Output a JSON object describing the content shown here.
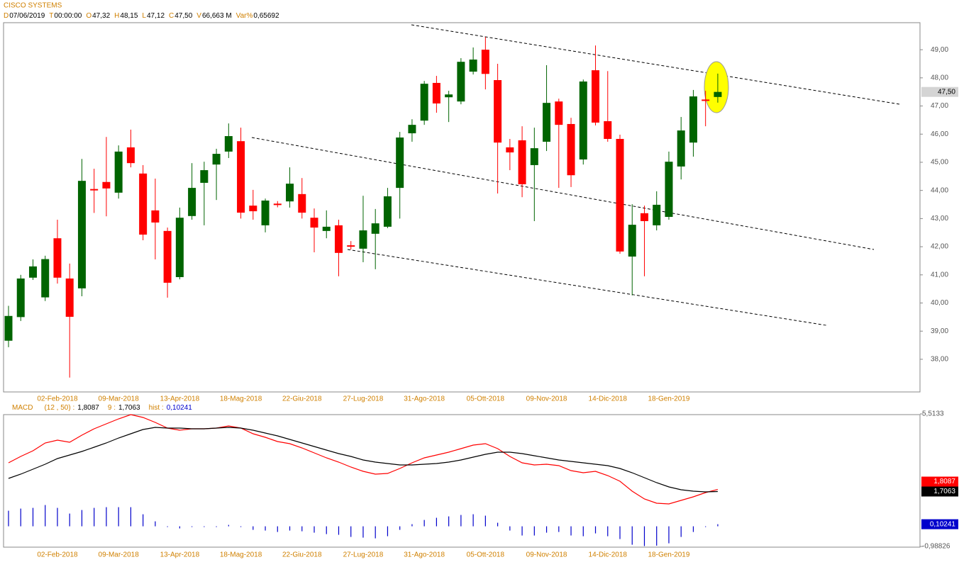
{
  "chart_data": [
    {
      "type": "candlestick",
      "title": "CISCO SYSTEMS",
      "header": [
        {
          "key": "D",
          "value": "07/06/2019"
        },
        {
          "key": "T",
          "value": "00:00:00"
        },
        {
          "key": "O",
          "value": "47,32"
        },
        {
          "key": "H",
          "value": "48,15"
        },
        {
          "key": "L",
          "value": "47,12"
        },
        {
          "key": "C",
          "value": "47,50"
        },
        {
          "key": "V",
          "value": "66,663 M"
        },
        {
          "key": "Var%",
          "value": "0,65692"
        }
      ],
      "categories": [
        null,
        null,
        null,
        null,
        "02-Feb-2018",
        null,
        null,
        null,
        null,
        "09-Mar-2018",
        null,
        null,
        null,
        null,
        "13-Apr-2018",
        null,
        null,
        null,
        null,
        "18-Mag-2018",
        null,
        null,
        null,
        null,
        "22-Giu-2018",
        null,
        null,
        null,
        null,
        "27-Lug-2018",
        null,
        null,
        null,
        null,
        "31-Ago-2018",
        null,
        null,
        null,
        null,
        "05-Ott-2018",
        null,
        null,
        null,
        null,
        "09-Nov-2018",
        null,
        null,
        null,
        null,
        "14-Dic-2018",
        null,
        null,
        null,
        null,
        "18-Gen-2019",
        null,
        null,
        null,
        null
      ],
      "open": [
        38.66,
        39.5,
        40.9,
        40.2,
        42.3,
        40.87,
        40.52,
        44.05,
        44.3,
        43.92,
        45.53,
        44.6,
        43.29,
        42.56,
        40.92,
        43.09,
        44.27,
        44.92,
        45.38,
        45.75,
        43.46,
        42.76,
        43.53,
        43.61,
        43.87,
        43.03,
        42.56,
        42.76,
        42.05,
        41.93,
        42.46,
        42.71,
        44.09,
        46.03,
        46.48,
        47.82,
        47.31,
        47.16,
        48.22,
        49.0,
        47.92,
        45.53,
        45.78,
        44.9,
        45.73,
        47.16,
        46.36,
        45.1,
        48.27,
        46.46,
        45.83,
        41.65,
        43.19,
        42.76,
        43.06,
        44.85,
        45.7,
        47.23,
        47.32
      ],
      "high": [
        39.9,
        41.0,
        41.55,
        41.68,
        42.96,
        41.4,
        45.12,
        44.77,
        45.9,
        45.6,
        46.16,
        44.9,
        44.42,
        42.68,
        43.39,
        44.97,
        45.02,
        45.48,
        46.38,
        46.23,
        44.02,
        43.71,
        43.62,
        44.82,
        44.44,
        43.36,
        43.29,
        42.96,
        42.2,
        43.81,
        43.34,
        44.09,
        46.08,
        46.53,
        47.89,
        48.07,
        47.54,
        48.7,
        49.08,
        49.45,
        48.5,
        45.83,
        46.28,
        46.23,
        48.45,
        47.26,
        46.58,
        47.94,
        49.15,
        48.24,
        45.98,
        43.51,
        43.46,
        43.97,
        45.38,
        46.61,
        47.57,
        47.54,
        48.15
      ],
      "low": [
        38.43,
        39.36,
        40.82,
        40.07,
        40.69,
        37.35,
        40.24,
        43.2,
        43.08,
        43.71,
        44.82,
        42.23,
        41.55,
        40.19,
        40.84,
        42.96,
        42.76,
        43.66,
        45.15,
        43.0,
        42.96,
        42.51,
        43.4,
        43.39,
        43.0,
        41.8,
        42.3,
        40.95,
        41.9,
        41.45,
        41.2,
        42.66,
        43.0,
        45.73,
        46.33,
        46.76,
        46.43,
        47.06,
        48.12,
        47.59,
        43.89,
        44.72,
        43.76,
        42.91,
        45.4,
        44.09,
        44.12,
        44.92,
        46.31,
        45.73,
        41.75,
        40.27,
        40.95,
        42.58,
        42.96,
        44.39,
        45.2,
        46.28,
        47.12
      ],
      "close": [
        39.54,
        40.87,
        41.3,
        41.56,
        40.9,
        39.51,
        44.34,
        44.0,
        44.07,
        45.38,
        44.97,
        42.43,
        42.86,
        40.72,
        43.03,
        44.09,
        44.72,
        45.3,
        45.93,
        43.21,
        43.26,
        43.64,
        43.5,
        44.24,
        43.21,
        42.68,
        42.71,
        41.78,
        42.0,
        42.58,
        42.83,
        43.79,
        45.88,
        46.33,
        47.79,
        47.09,
        47.41,
        48.57,
        48.65,
        48.14,
        45.7,
        45.35,
        44.22,
        45.5,
        47.11,
        46.33,
        44.54,
        47.87,
        46.41,
        45.83,
        41.83,
        42.78,
        42.91,
        43.49,
        45.02,
        46.13,
        47.34,
        47.2,
        47.5
      ],
      "up_color": "#006400",
      "down_color": "#ff0000",
      "last_price": {
        "value": 47.5,
        "label": "47,50"
      },
      "ylim": [
        36.84,
        49.96
      ],
      "yticks": [
        {
          "value": 38,
          "label": "38,00"
        },
        {
          "value": 39,
          "label": "39,00"
        },
        {
          "value": 40,
          "label": "40,00"
        },
        {
          "value": 41,
          "label": "41,00"
        },
        {
          "value": 42,
          "label": "42,00"
        },
        {
          "value": 43,
          "label": "43,00"
        },
        {
          "value": 44,
          "label": "44,00"
        },
        {
          "value": 45,
          "label": "45,00"
        },
        {
          "value": 46,
          "label": "46,00"
        },
        {
          "value": 47,
          "label": "47,00"
        },
        {
          "value": 48,
          "label": "48,00"
        },
        {
          "value": 49,
          "label": "49,00"
        }
      ]
    },
    {
      "type": "macd",
      "title": "MACD",
      "series": [
        {
          "name": "(12 , 50) :",
          "style": "line",
          "color": "#ff0000",
          "value_label": "1,8087",
          "values": [
            3.114,
            3.427,
            3.705,
            4.088,
            4.227,
            4.122,
            4.47,
            4.783,
            5.027,
            5.27,
            5.478,
            5.339,
            5.096,
            4.818,
            4.714,
            4.783,
            4.783,
            4.818,
            4.922,
            4.818,
            4.54,
            4.366,
            4.157,
            4.053,
            3.844,
            3.601,
            3.357,
            3.149,
            2.906,
            2.697,
            2.558,
            2.593,
            2.836,
            3.114,
            3.357,
            3.497,
            3.636,
            3.81,
            3.984,
            4.053,
            3.81,
            3.427,
            3.114,
            3.01,
            3.045,
            2.975,
            2.732,
            2.627,
            2.697,
            2.488,
            2.21,
            1.723,
            1.341,
            1.132,
            1.097,
            1.271,
            1.445,
            1.654,
            1.8087
          ]
        },
        {
          "name": "9 :",
          "style": "line",
          "color": "#000000",
          "value_label": "1,7063",
          "values": [
            2.349,
            2.558,
            2.801,
            3.045,
            3.323,
            3.497,
            3.671,
            3.879,
            4.088,
            4.331,
            4.54,
            4.749,
            4.853,
            4.818,
            4.818,
            4.783,
            4.783,
            4.818,
            4.853,
            4.818,
            4.714,
            4.575,
            4.435,
            4.262,
            4.088,
            3.914,
            3.74,
            3.566,
            3.427,
            3.253,
            3.149,
            3.079,
            3.01,
            3.01,
            3.045,
            3.079,
            3.149,
            3.253,
            3.392,
            3.531,
            3.636,
            3.636,
            3.566,
            3.462,
            3.357,
            3.253,
            3.183,
            3.114,
            3.045,
            2.975,
            2.836,
            2.627,
            2.384,
            2.14,
            1.932,
            1.793,
            1.723,
            1.689,
            1.7063
          ]
        },
        {
          "name": "hist :",
          "style": "bar",
          "color": "#0000cc",
          "value_label": "0,10241",
          "values": [
            0.765,
            0.869,
            0.904,
            1.043,
            0.904,
            0.625,
            0.799,
            0.904,
            0.939,
            0.939,
            0.938,
            0.59,
            0.243,
            -0.035,
            -0.104,
            -0.035,
            -0.035,
            -0.035,
            0.069,
            -0.035,
            -0.174,
            -0.209,
            -0.278,
            -0.209,
            -0.244,
            -0.313,
            -0.383,
            -0.417,
            -0.521,
            -0.556,
            -0.591,
            -0.486,
            -0.174,
            0.104,
            0.312,
            0.418,
            0.487,
            0.557,
            0.592,
            0.522,
            0.174,
            -0.209,
            -0.452,
            -0.452,
            -0.312,
            -0.278,
            -0.451,
            -0.487,
            -0.348,
            -0.487,
            -0.626,
            -0.904,
            -0.97,
            -0.95,
            -0.835,
            -0.522,
            -0.278,
            -0.035,
            0.10241
          ]
        }
      ],
      "ylim": [
        -0.98826,
        5.5133
      ],
      "yticks": [
        {
          "value": -0.98826,
          "label": "-0,98826"
        },
        {
          "value": 5.5133,
          "label": "5,5133"
        }
      ]
    }
  ]
}
